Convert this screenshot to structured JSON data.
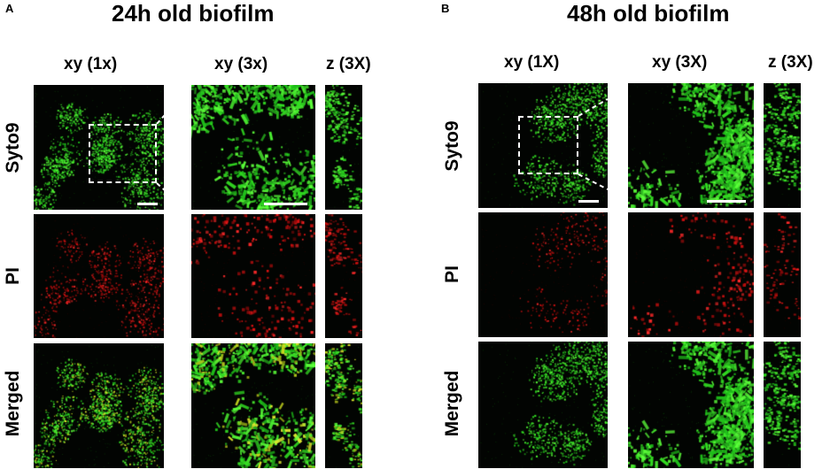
{
  "panel_a": {
    "letter": "A",
    "title": "24h old biofilm",
    "columns": [
      "xy (1x)",
      "xy (3x)",
      "z (3X)"
    ],
    "rows": [
      "Syto9",
      "PI",
      "Merged"
    ]
  },
  "panel_b": {
    "letter": "B",
    "title": "48h old biofilm",
    "columns": [
      "xy (1X)",
      "xy (3X)",
      "z (3X)"
    ],
    "rows": [
      "Syto9",
      "PI",
      "Merged"
    ]
  },
  "channel_colors": {
    "syto9": "#33dd22",
    "pi": "#dd1111",
    "merged_overlap": "#c8d820"
  }
}
